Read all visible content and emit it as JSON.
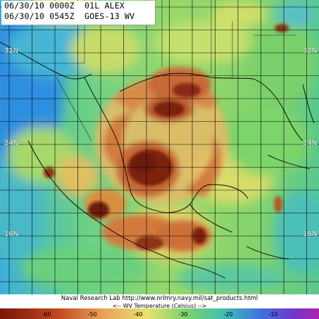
{
  "header": {
    "line1": "06/30/10 0000Z  01L ALEX",
    "line2": "06/30/10 0545Z  GOES-13 WV"
  },
  "lat_labels": {
    "left_32": "32N",
    "right_32": "32N",
    "left_24": "24N",
    "right_24": "24N",
    "left_16": "16N",
    "right_16": "16N"
  },
  "footer": {
    "credit": "Naval Research Lab http://www.nrlmry.navy.mil/sat_products.html",
    "legend_title": "<--   WV Temperature (Celsius)   -->",
    "ticks": [
      "-60",
      "-50",
      "-40",
      "-30",
      "-20",
      "-10"
    ]
  },
  "colors": {
    "coldest": "#7a1f08",
    "cold": "#c4602a",
    "mid_cold": "#e2a85a",
    "mid": "#c8e070",
    "warm": "#6cd06a",
    "warmer": "#48c8c0",
    "warmest": "#4080e0",
    "extreme": "#7a40d0",
    "grid": "#000000"
  }
}
